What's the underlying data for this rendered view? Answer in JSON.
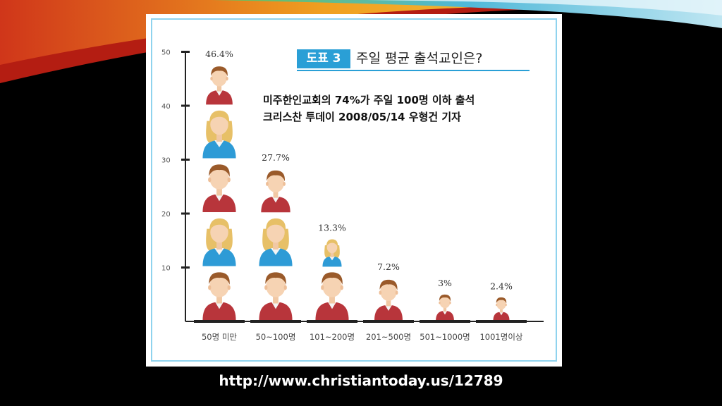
{
  "colors": {
    "accent_blue": "#2a9fd6",
    "panel_border": "#8fd3ee",
    "male_shirt": "#b8353b",
    "female_shirt": "#2e9bd6"
  },
  "header": {
    "badge": "도표 3",
    "title": "주일 평균 출석교인은?"
  },
  "subtitle_lines": [
    "미주한인교회의 74%가 주일 100명 이하 출석",
    "크리스찬 투데이 2008/05/14 우형건 기자"
  ],
  "footer_url": "http://www.christiantoday.us/12789",
  "chart_data": {
    "type": "bar",
    "title": "주일 평균 출석교인은?",
    "xlabel": "",
    "ylabel": "",
    "ylim": [
      0,
      50
    ],
    "yticks": [
      10,
      20,
      30,
      40,
      50
    ],
    "categories": [
      "50명 미만",
      "50~100명",
      "101~200명",
      "201~500명",
      "501~1000명",
      "1001명이상"
    ],
    "values": [
      46.4,
      27.7,
      13.3,
      7.2,
      3,
      2.4
    ],
    "value_labels": [
      "46.4%",
      "27.7%",
      "13.3%",
      "7.2%",
      "3%",
      "2.4%"
    ],
    "marker": "stacked person icons (alternating male red / female blue)",
    "grid": false,
    "legend": "none"
  }
}
